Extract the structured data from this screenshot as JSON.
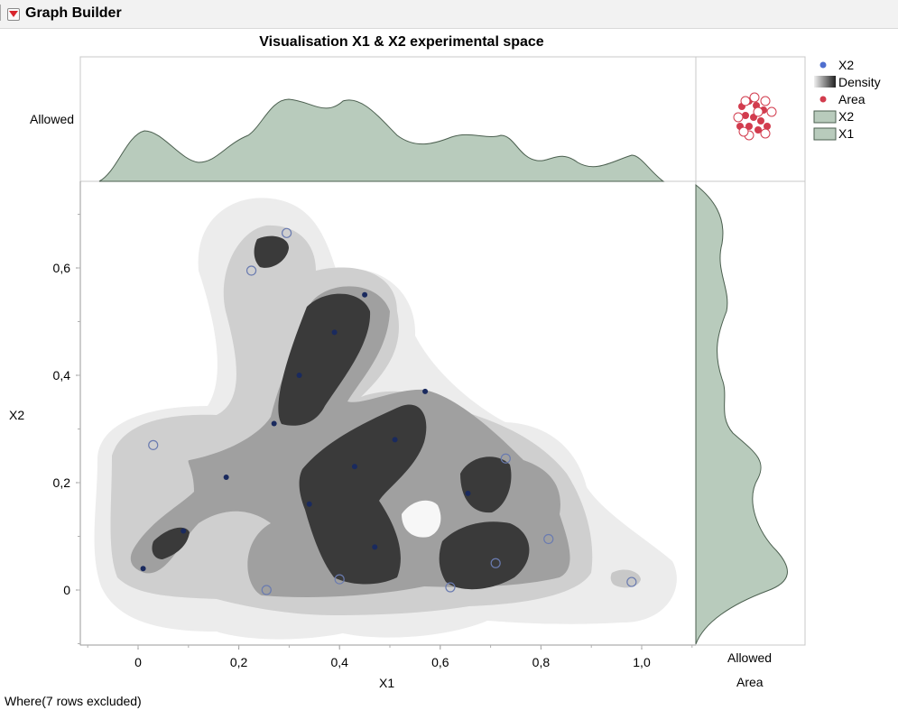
{
  "window": {
    "title": "Graph Builder"
  },
  "chart_data": {
    "type": "scatter",
    "title": "Visualisation X1 & X2 experimental space",
    "xlabel": "X1",
    "ylabel": "X2",
    "xlim": [
      -0.12,
      1.12
    ],
    "ylim": [
      -0.1,
      0.74
    ],
    "x_ticks": [
      "0",
      "0,2",
      "0,4",
      "0,6",
      "0,8",
      "1,0"
    ],
    "y_ticks": [
      "0",
      "0,2",
      "0,4",
      "0,6"
    ],
    "top_marginal_label": "Allowed",
    "right_marginal_label": "Allowed",
    "area_label": "Area",
    "density_overlay": "contour",
    "legend": {
      "position": "right",
      "items": [
        {
          "label": "X2",
          "kind": "dot",
          "color": "#4f6fcf"
        },
        {
          "label": "Density",
          "kind": "gradient",
          "color": "#303030"
        },
        {
          "label": "Area",
          "kind": "dot",
          "color": "#d23c4e"
        },
        {
          "label": "X2",
          "kind": "box",
          "color": "#b8cbbc"
        },
        {
          "label": "X1",
          "kind": "box",
          "color": "#b8cbbc"
        }
      ]
    },
    "series": [
      {
        "marker": "filled",
        "color": "#1a2a5e",
        "points": [
          {
            "x": 0.01,
            "y": 0.04
          },
          {
            "x": 0.09,
            "y": 0.11
          },
          {
            "x": 0.175,
            "y": 0.21
          },
          {
            "x": 0.27,
            "y": 0.31
          },
          {
            "x": 0.32,
            "y": 0.4
          },
          {
            "x": 0.34,
            "y": 0.16
          },
          {
            "x": 0.39,
            "y": 0.48
          },
          {
            "x": 0.43,
            "y": 0.23
          },
          {
            "x": 0.45,
            "y": 0.55
          },
          {
            "x": 0.47,
            "y": 0.08
          },
          {
            "x": 0.51,
            "y": 0.28
          },
          {
            "x": 0.57,
            "y": 0.37
          },
          {
            "x": 0.655,
            "y": 0.18
          }
        ]
      },
      {
        "marker": "open",
        "color": "#6a7bb0",
        "points": [
          {
            "x": 0.03,
            "y": 0.27
          },
          {
            "x": 0.225,
            "y": 0.595
          },
          {
            "x": 0.255,
            "y": 0.0
          },
          {
            "x": 0.295,
            "y": 0.665
          },
          {
            "x": 0.4,
            "y": 0.02
          },
          {
            "x": 0.62,
            "y": 0.005
          },
          {
            "x": 0.71,
            "y": 0.05
          },
          {
            "x": 0.73,
            "y": 0.245
          },
          {
            "x": 0.815,
            "y": 0.095
          },
          {
            "x": 0.98,
            "y": 0.015
          }
        ]
      }
    ],
    "grid": false
  },
  "footer": {
    "where": "Where(7 rows excluded)"
  }
}
